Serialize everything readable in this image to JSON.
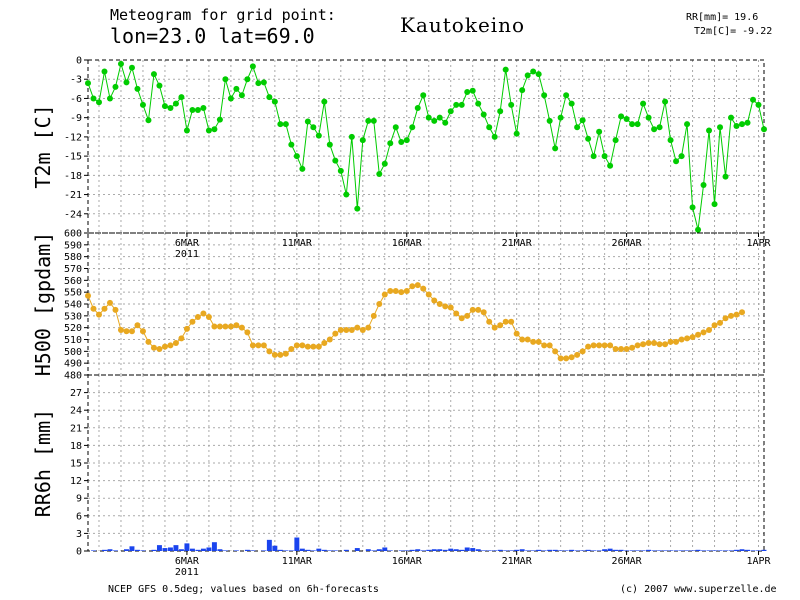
{
  "header": {
    "title_line1": "Meteogram for grid point:",
    "title_line2": "lon=23.0 lat=69.0",
    "station": "Kautokeino",
    "rr_stat": "RR[mm]= 19.6",
    "t2m_stat": "T2m[C]= -9.22"
  },
  "footer": {
    "source": "NCEP GFS 0.5deg; values based on 6h-forecasts",
    "credit": "(c) 2007 www.superzelle.de"
  },
  "chart_data": [
    {
      "type": "line",
      "ylabel": "T2m [C]",
      "ylim": [
        -27,
        0
      ],
      "yticks": [
        0,
        -3,
        -6,
        -9,
        -12,
        -15,
        -18,
        -21,
        -24
      ],
      "grid": true,
      "color": "#00cc00",
      "x_step_hours": 6,
      "start": "2011-03-01 12:00",
      "values": [
        -3.6,
        -6.0,
        -6.6,
        -1.8,
        -6.0,
        -4.2,
        -0.6,
        -3.5,
        -1.2,
        -4.5,
        -7.0,
        -9.4,
        -2.2,
        -4.0,
        -7.2,
        -7.5,
        -6.8,
        -5.8,
        -11.0,
        -7.8,
        -7.8,
        -7.5,
        -11.0,
        -10.8,
        -9.3,
        -3.0,
        -6.0,
        -4.5,
        -5.5,
        -3.0,
        -1.0,
        -3.6,
        -3.5,
        -5.8,
        -6.5,
        -10.0,
        -10.0,
        -13.2,
        -15.0,
        -17.0,
        -9.6,
        -10.5,
        -11.8,
        -6.5,
        -13.2,
        -15.7,
        -17.3,
        -21.0,
        -12.0,
        -23.2,
        -12.5,
        -9.5,
        -9.5,
        -17.8,
        -16.2,
        -13.0,
        -10.5,
        -12.8,
        -12.5,
        -10.5,
        -7.5,
        -5.5,
        -9.0,
        -9.5,
        -9.0,
        -9.8,
        -8.0,
        -7.0,
        -7.0,
        -5.0,
        -4.8,
        -6.8,
        -8.5,
        -10.5,
        -12.0,
        -8.0,
        -1.5,
        -7.0,
        -11.5,
        -4.7,
        -2.4,
        -1.8,
        -2.2,
        -5.5,
        -9.5,
        -13.8,
        -9.0,
        -5.5,
        -6.8,
        -10.5,
        -9.4,
        -12.3,
        -15.0,
        -11.2,
        -15.0,
        -16.5,
        -12.5,
        -8.8,
        -9.2,
        -10.0,
        -10.0,
        -6.8,
        -9.0,
        -10.8,
        -10.5,
        -6.5,
        -12.5,
        -15.8,
        -15.0,
        -10.0,
        -23.0,
        -26.5,
        -19.5,
        -11.0,
        -22.5,
        -10.5,
        -18.2,
        -9.0,
        -10.3,
        -10.0,
        -9.8,
        -6.2,
        -7.0,
        -10.8
      ]
    },
    {
      "type": "line",
      "ylabel": "H500 [gpdam]",
      "ylim": [
        480,
        600
      ],
      "yticks": [
        600,
        590,
        580,
        570,
        560,
        550,
        540,
        530,
        520,
        510,
        500,
        490,
        480
      ],
      "grid": true,
      "color": "#e8a820",
      "x_step_hours": 6,
      "start": "2011-03-01 12:00",
      "values": [
        547,
        536,
        531,
        536,
        541,
        535,
        518,
        517,
        517,
        522,
        517,
        508,
        503,
        502,
        504,
        505,
        507,
        511,
        519,
        525,
        529,
        532,
        529,
        521,
        521,
        521,
        521,
        522,
        520,
        516,
        505,
        505,
        505,
        500,
        497,
        497,
        498,
        502,
        505,
        505,
        504,
        504,
        504,
        507,
        510,
        515,
        518,
        518,
        518,
        520,
        518,
        520,
        530,
        540,
        548,
        551,
        551,
        550,
        551,
        555,
        556,
        553,
        548,
        543,
        540,
        538,
        537,
        532,
        528,
        530,
        535,
        535,
        533,
        525,
        520,
        522,
        525,
        525,
        515,
        510,
        510,
        508,
        508,
        505,
        505,
        500,
        494,
        494,
        495,
        497,
        500,
        504,
        505,
        505,
        505,
        505,
        502,
        502,
        502,
        503,
        505,
        506,
        507,
        507,
        506,
        506,
        508,
        508,
        510,
        511,
        512,
        514,
        516,
        518,
        522,
        524,
        528,
        530,
        531,
        533
      ]
    },
    {
      "type": "bar",
      "ylabel": "RR6h [mm]",
      "ylim": [
        0,
        30
      ],
      "yticks": [
        27,
        24,
        21,
        18,
        15,
        12,
        9,
        6,
        3,
        0
      ],
      "grid": true,
      "color": "#1a44ee",
      "x_step_hours": 6,
      "start": "2011-03-01 12:00",
      "values": [
        0,
        0.1,
        0,
        0.2,
        0.3,
        0.1,
        0,
        0.3,
        0.8,
        0.2,
        0.1,
        0,
        0.2,
        1.0,
        0.5,
        0.6,
        1.0,
        0.3,
        1.3,
        0.4,
        0.2,
        0.4,
        0.6,
        1.5,
        0.3,
        0.1,
        0,
        0.1,
        0,
        0.2,
        0.1,
        0,
        0.1,
        1.9,
        0.9,
        0.2,
        0.1,
        0.1,
        2.3,
        0.4,
        0.2,
        0.1,
        0.4,
        0.2,
        0.1,
        0.1,
        0,
        0.2,
        0,
        0.5,
        0,
        0.3,
        0.1,
        0.3,
        0.6,
        0.1,
        0,
        0.1,
        0.1,
        0.2,
        0.3,
        0.1,
        0.2,
        0.3,
        0.3,
        0.2,
        0.4,
        0.3,
        0.2,
        0.6,
        0.5,
        0.3,
        0.1,
        0.1,
        0.1,
        0.2,
        0.1,
        0.1,
        0.2,
        0.3,
        0.1,
        0.1,
        0.2,
        0.1,
        0.2,
        0.2,
        0.1,
        0.1,
        0.2,
        0.1,
        0.1,
        0.2,
        0.1,
        0.1,
        0.3,
        0.4,
        0.2,
        0.2,
        0.1,
        0.1,
        0.1,
        0.1,
        0.2,
        0.1,
        0.1,
        0.1,
        0.1,
        0.1,
        0.1,
        0.1,
        0.1,
        0.2,
        0.1,
        0.1,
        0.1,
        0.1,
        0.1,
        0.1,
        0.2,
        0.3,
        0.2,
        0.1,
        0.1,
        0.2
      ]
    }
  ],
  "x_axis": {
    "ticks": [
      "6MAR",
      "11MAR",
      "16MAR",
      "21MAR",
      "26MAR",
      "1APR"
    ],
    "tick_positions_hours": [
      108,
      228,
      348,
      468,
      588,
      732
    ],
    "year_label": "2011",
    "total_hours": 738
  }
}
